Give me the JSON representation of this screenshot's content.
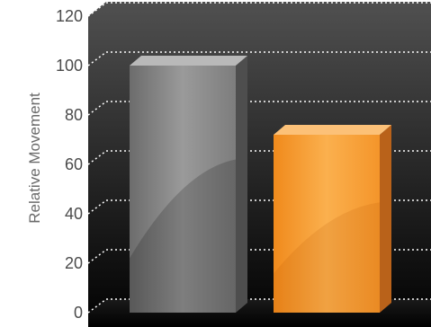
{
  "chart_data": {
    "type": "bar",
    "ylabel": "Relative Movement",
    "xlabel": "",
    "title": "",
    "ylim": [
      0,
      120
    ],
    "yticks": [
      0,
      20,
      40,
      60,
      80,
      100,
      120
    ],
    "grid": true,
    "gridStyle": "dotted",
    "style": "3d",
    "values": [
      100,
      72
    ],
    "colors": [
      "#7a7a7a",
      "#f7982a"
    ]
  }
}
